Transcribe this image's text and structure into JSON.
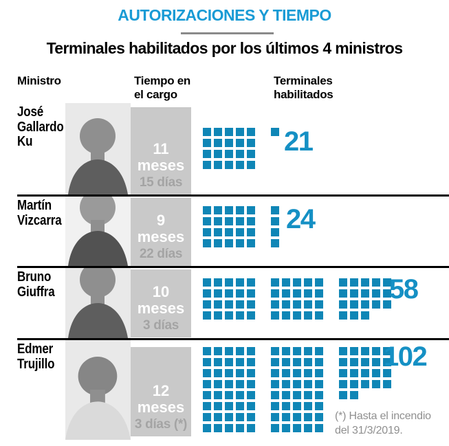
{
  "header": {
    "kicker": "AUTORIZACIONES Y TIEMPO",
    "title": "Terminales habilitados por los últimos 4 ministros"
  },
  "columns": {
    "minister": "Ministro",
    "time": "Tiempo en\nel cargo",
    "terminals": "Terminales\nhabilitados"
  },
  "footnote": "(*) Hasta el incendio\ndel 31/3/2019.",
  "colors": {
    "kicker_cyan": "#199bd5",
    "square_blue": "#0f86b6",
    "count_blue": "#1590c4",
    "bar_gray": "#c9c9c9",
    "days_gray": "#a4a4a4",
    "footnote_gray": "#8f8f8f",
    "separator_black": "#000000"
  },
  "ministers": [
    {
      "name": "José\nGallardo\nKu",
      "months_value": "11",
      "months_label": "meses",
      "days": "15 días",
      "terminals": 21,
      "blocks": [
        [
          5,
          5,
          5,
          5
        ],
        [
          1
        ]
      ]
    },
    {
      "name": "Martín\nVizcarra",
      "months_value": "9",
      "months_label": "meses",
      "days": "22 días",
      "terminals": 24,
      "blocks": [
        [
          5,
          5,
          5,
          5
        ],
        [
          1,
          1,
          1,
          1
        ]
      ]
    },
    {
      "name": "Bruno\nGiuffra",
      "months_value": "10",
      "months_label": "meses",
      "days": "3 días",
      "terminals": 58,
      "blocks": [
        [
          5,
          5,
          5,
          5
        ],
        [
          5,
          5,
          5,
          5
        ],
        [
          5,
          5,
          5,
          3
        ]
      ]
    },
    {
      "name": "Edmer\nTrujillo",
      "months_value": "12",
      "months_label": "meses",
      "days": "3 días (*)",
      "terminals": 102,
      "blocks": [
        [
          5,
          5,
          5,
          5,
          5,
          5,
          5,
          5
        ],
        [
          5,
          5,
          5,
          5,
          5,
          5,
          5,
          5
        ],
        [
          5,
          5,
          5,
          5,
          2
        ]
      ]
    }
  ],
  "chart_data": {
    "type": "pictogram",
    "kicker": "AUTORIZACIONES Y TIEMPO",
    "title": "Terminales habilitados por los últimos 4 ministros",
    "categories": [
      "José Gallardo Ku",
      "Martín Vizcarra",
      "Bruno Giuffra",
      "Edmer Trujillo"
    ],
    "series": [
      {
        "name": "Tiempo en el cargo",
        "values": [
          "11 meses 15 días",
          "9 meses 22 días",
          "10 meses 3 días",
          "12 meses 3 días (*)"
        ]
      },
      {
        "name": "Terminales habilitados",
        "values": [
          21,
          24,
          58,
          102
        ]
      }
    ],
    "footnote": "(*) Hasta el incendio del 31/3/2019."
  }
}
